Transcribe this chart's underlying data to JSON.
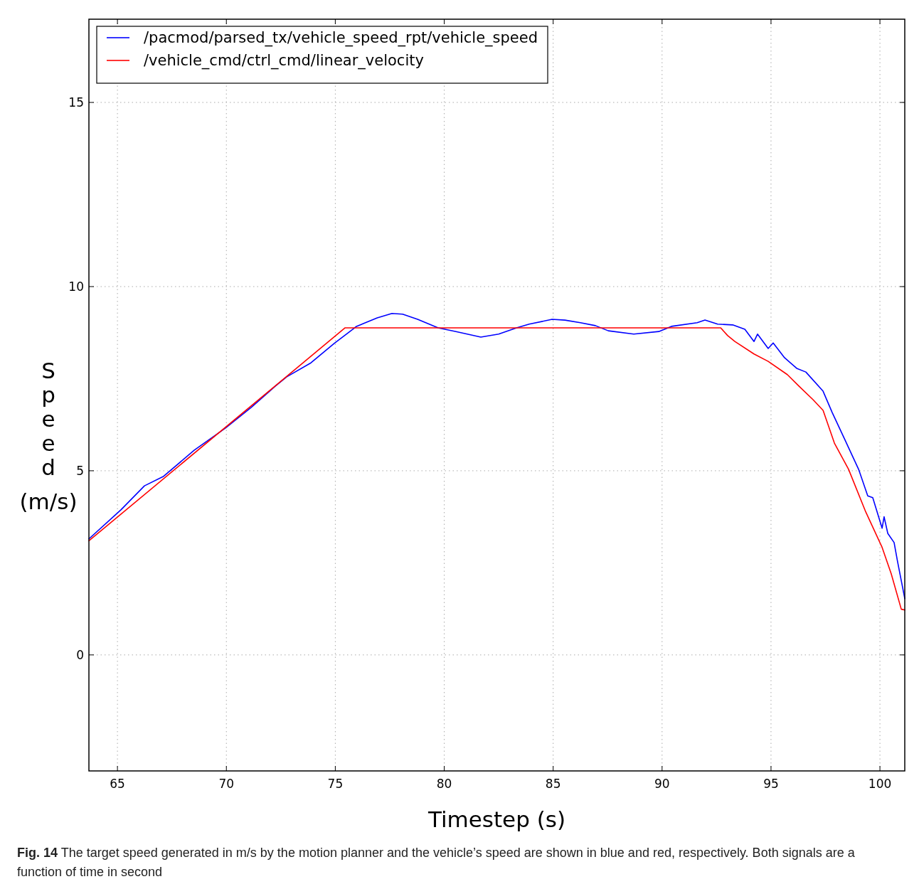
{
  "chart_data": {
    "type": "line",
    "xlabel": "Timestep (s)",
    "ylabel": "Speed (m/s)",
    "xlim": [
      63.69,
      101.14
    ],
    "ylim": [
      -3.15,
      17.26
    ],
    "xticks": [
      65,
      70,
      75,
      80,
      85,
      90,
      95,
      100
    ],
    "yticks": [
      0,
      5,
      10,
      15
    ],
    "grid": true,
    "legend": "top left",
    "marker": "none",
    "line_style": "solid",
    "annotations": [
      "Fig. 14 The target speed generated in m/s by the motion planner and the vehicle’s speed are shown in blue and red, respectively. Both signals are a function of time in second"
    ],
    "series": [
      {
        "name": "/pacmod/parsed_tx/vehicle_speed_rpt/vehicle_speed",
        "color": "#0000ff",
        "x": [
          63.69,
          65.16,
          66.24,
          67.12,
          68.53,
          69.96,
          71.14,
          72.25,
          72.77,
          73.88,
          74.96,
          75.84,
          75.97,
          76.92,
          77.6,
          78.09,
          78.78,
          79.72,
          80.54,
          81.68,
          82.5,
          83.32,
          83.9,
          84.95,
          85.54,
          86.25,
          86.94,
          87.53,
          88.7,
          89.85,
          90.43,
          91.61,
          91.97,
          92.55,
          93.24,
          93.8,
          94.22,
          94.38,
          94.87,
          95.1,
          95.62,
          96.18,
          96.6,
          97.39,
          97.81,
          98.37,
          99.02,
          99.44,
          99.67,
          100.1,
          100.19,
          100.36,
          100.65,
          100.81,
          101.14
        ],
        "values": [
          3.15,
          3.94,
          4.59,
          4.85,
          5.56,
          6.16,
          6.72,
          7.3,
          7.55,
          7.93,
          8.46,
          8.86,
          8.92,
          9.15,
          9.27,
          9.25,
          9.11,
          8.88,
          8.78,
          8.63,
          8.71,
          8.88,
          8.98,
          9.11,
          9.09,
          9.02,
          8.94,
          8.8,
          8.71,
          8.78,
          8.92,
          9.02,
          9.09,
          8.98,
          8.96,
          8.84,
          8.51,
          8.71,
          8.32,
          8.47,
          8.07,
          7.78,
          7.68,
          7.16,
          6.58,
          5.87,
          5.04,
          4.32,
          4.27,
          3.44,
          3.75,
          3.3,
          3.05,
          2.53,
          1.53
        ]
      },
      {
        "name": "/vehicle_cmd/ctrl_cmd/linear_velocity",
        "color": "#ff0000",
        "x": [
          63.69,
          75.45,
          92.69,
          93.01,
          93.34,
          94.22,
          94.87,
          95.75,
          96.28,
          96.93,
          97.39,
          97.91,
          98.56,
          99.35,
          100.1,
          100.52,
          100.98,
          101.14
        ],
        "values": [
          3.1,
          8.88,
          8.88,
          8.67,
          8.51,
          8.17,
          7.97,
          7.61,
          7.3,
          6.93,
          6.64,
          5.75,
          5.04,
          3.88,
          2.92,
          2.2,
          1.24,
          1.22
        ]
      }
    ]
  }
}
